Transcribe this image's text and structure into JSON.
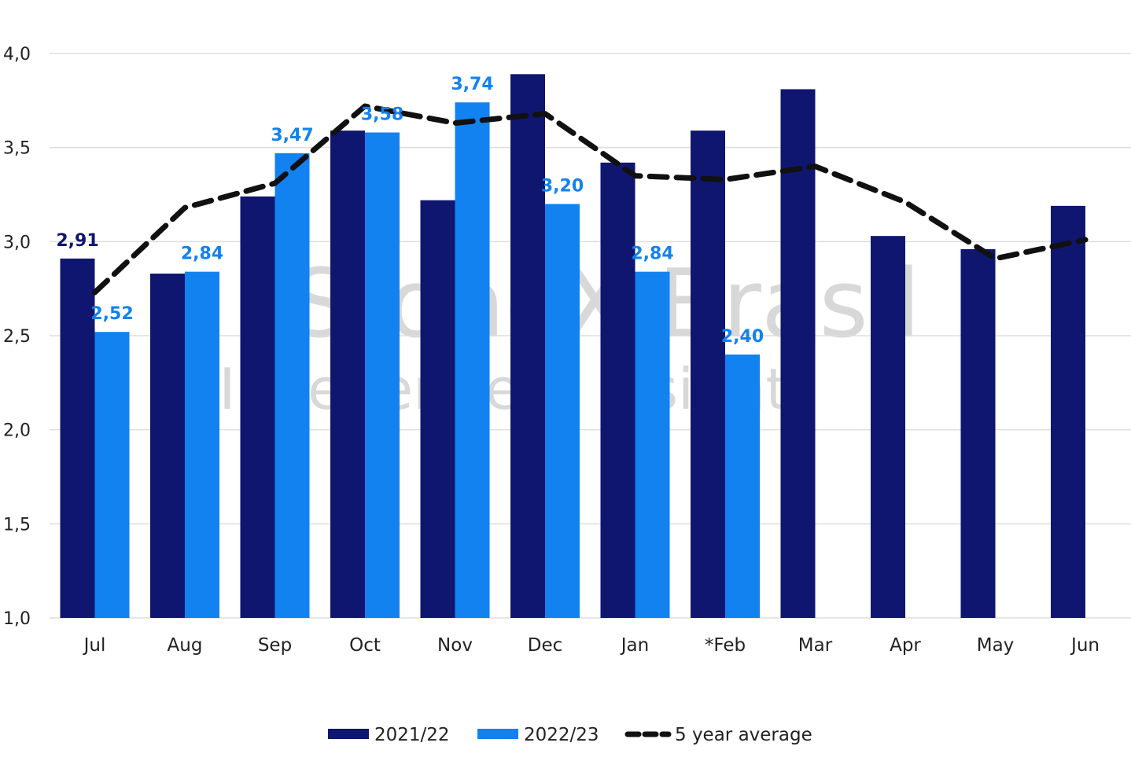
{
  "colors": {
    "series_2021": "#0f1670",
    "series_2022": "#1282f0",
    "average": "#111111",
    "grid": "#dddddd",
    "label_2021": "#0f1670",
    "label_2022": "#1282f0"
  },
  "watermark": {
    "line1": "StoneX Brasil",
    "line2": "Independent Insight"
  },
  "legend": {
    "items": [
      "2021/22",
      "2022/23",
      "5 year average"
    ]
  },
  "chart_data": {
    "type": "bar",
    "categories": [
      "Jul",
      "Aug",
      "Sep",
      "Oct",
      "Nov",
      "Dec",
      "Jan",
      "*Feb",
      "Mar",
      "Apr",
      "May",
      "Jun"
    ],
    "ylim": [
      1.0,
      4.0
    ],
    "yticks": [
      "1,0",
      "1,5",
      "2,0",
      "2,5",
      "3,0",
      "3,5",
      "4,0"
    ],
    "ytick_values": [
      1.0,
      1.5,
      2.0,
      2.5,
      3.0,
      3.5,
      4.0
    ],
    "grid": true,
    "legend_position": "bottom",
    "series": [
      {
        "name": "2021/22",
        "type": "bar",
        "values": [
          2.91,
          2.83,
          3.24,
          3.59,
          3.22,
          3.89,
          3.42,
          3.59,
          3.81,
          3.03,
          2.96,
          3.19
        ],
        "labels": [
          "2,91",
          "",
          "",
          "",
          "",
          "",
          "",
          "",
          "",
          "",
          "",
          ""
        ]
      },
      {
        "name": "2022/23",
        "type": "bar",
        "values": [
          2.52,
          2.84,
          3.47,
          3.58,
          3.74,
          3.2,
          2.84,
          2.4,
          null,
          null,
          null,
          null
        ],
        "labels": [
          "2,52",
          "2,84",
          "3,47",
          "3,58",
          "3,74",
          "3,20",
          "2,84",
          "2,40",
          "",
          "",
          "",
          ""
        ]
      },
      {
        "name": "5 year average",
        "type": "line",
        "values": [
          2.73,
          3.18,
          3.31,
          3.72,
          3.63,
          3.68,
          3.35,
          3.33,
          3.4,
          3.21,
          2.91,
          3.01
        ]
      }
    ]
  }
}
